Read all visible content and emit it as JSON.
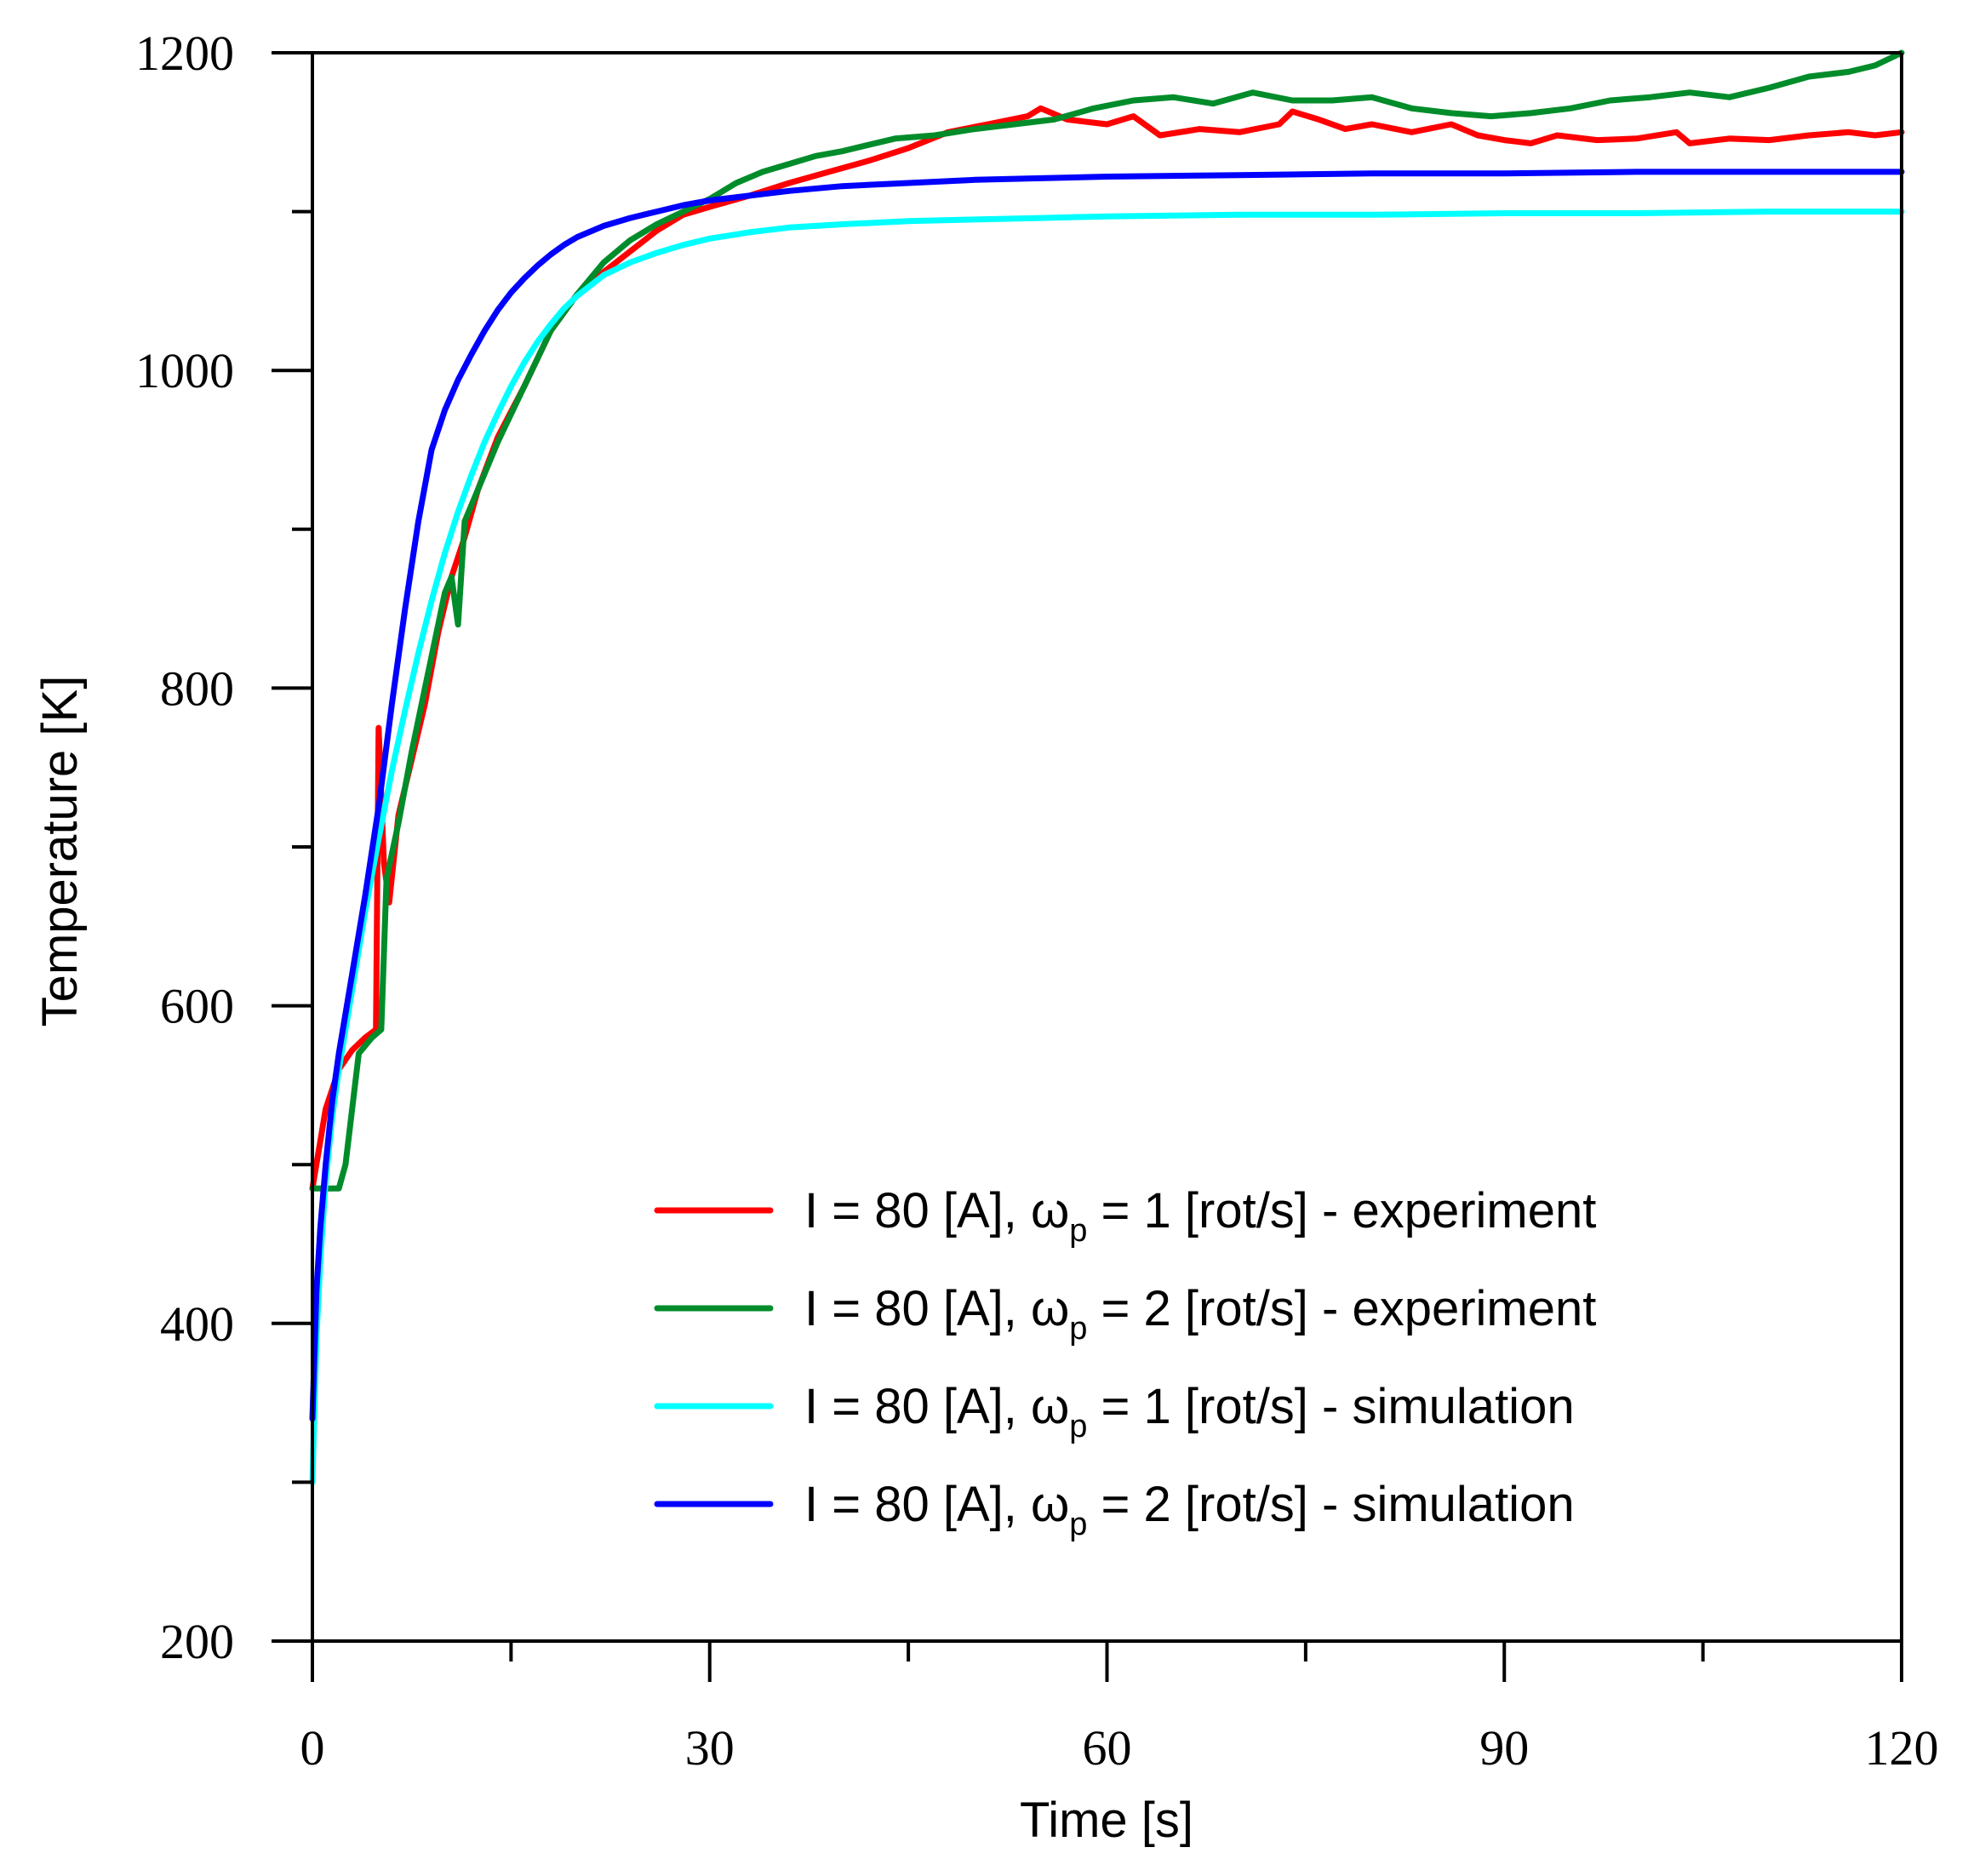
{
  "chart_data": {
    "type": "line",
    "title": "",
    "xlabel": "Time [s]",
    "ylabel": "Temperature [K]",
    "xlim": [
      0,
      120
    ],
    "ylim": [
      200,
      1200
    ],
    "x_ticks": [
      0,
      30,
      60,
      90,
      120
    ],
    "x_minor_ticks": [
      15,
      45,
      75,
      105
    ],
    "y_ticks": [
      200,
      400,
      600,
      800,
      1000,
      1200
    ],
    "y_minor_ticks": [
      300,
      500,
      700,
      900,
      1100
    ],
    "grid": false,
    "legend_position": "lower-right",
    "series": [
      {
        "name": "I = 80 [A], ωp = 1 [rot/s] - experiment",
        "label": {
          "pre": "I = 80 [A], ω",
          "sub": "p",
          "post": " = 1 [rot/s] - experiment"
        },
        "color": "#ff0000",
        "x": [
          0,
          1,
          2,
          3,
          4,
          4.8,
          5,
          5.4,
          5.8,
          6.5,
          7.5,
          8.5,
          9.5,
          10.5,
          11.5,
          12.5,
          14,
          16,
          18,
          20,
          22,
          24,
          26,
          28,
          30,
          33,
          36,
          39,
          42,
          45,
          48,
          51,
          54,
          55,
          57,
          60,
          62,
          64,
          67,
          70,
          73,
          74,
          76,
          78,
          80,
          83,
          86,
          88,
          90,
          92,
          94,
          97,
          100,
          103,
          104,
          107,
          110,
          113,
          116,
          118,
          120
        ],
        "y": [
          485,
          535,
          560,
          572,
          580,
          585,
          775,
          690,
          665,
          720,
          755,
          790,
          835,
          870,
          895,
          925,
          958,
          990,
          1025,
          1048,
          1062,
          1075,
          1088,
          1098,
          1103,
          1110,
          1118,
          1125,
          1132,
          1140,
          1150,
          1155,
          1160,
          1165,
          1158,
          1155,
          1160,
          1148,
          1152,
          1150,
          1155,
          1163,
          1158,
          1152,
          1155,
          1150,
          1155,
          1148,
          1145,
          1143,
          1148,
          1145,
          1146,
          1150,
          1143,
          1146,
          1145,
          1148,
          1150,
          1148,
          1150
        ]
      },
      {
        "name": "I = 80 [A], ωp = 2 [rot/s] - experiment",
        "label": {
          "pre": "I = 80 [A], ω",
          "sub": "p",
          "post": " = 2 [rot/s] - experiment"
        },
        "color": "#008c2a",
        "x": [
          0,
          1,
          2,
          2.5,
          3.5,
          4.5,
          5.2,
          5.6,
          6.5,
          7.5,
          8.5,
          9.5,
          10,
          10.5,
          11,
          11.5,
          12.5,
          14,
          16,
          18,
          20,
          22,
          24,
          26,
          28,
          30,
          32,
          34,
          36,
          38,
          40,
          42,
          44,
          47,
          50,
          53,
          56,
          59,
          62,
          65,
          68,
          71,
          74,
          77,
          80,
          83,
          86,
          89,
          92,
          95,
          98,
          101,
          104,
          107,
          110,
          113,
          116,
          118,
          120
        ],
        "y": [
          485,
          485,
          485,
          500,
          570,
          580,
          585,
          680,
          715,
          760,
          800,
          840,
          860,
          870,
          840,
          905,
          925,
          955,
          990,
          1025,
          1048,
          1068,
          1082,
          1092,
          1100,
          1108,
          1118,
          1125,
          1130,
          1135,
          1138,
          1142,
          1146,
          1148,
          1152,
          1155,
          1158,
          1165,
          1170,
          1172,
          1168,
          1175,
          1170,
          1170,
          1172,
          1165,
          1162,
          1160,
          1162,
          1165,
          1170,
          1172,
          1175,
          1172,
          1178,
          1185,
          1188,
          1192,
          1200
        ]
      },
      {
        "name": "I = 80 [A], ωp = 1 [rot/s] - simulation",
        "label": {
          "pre": "I = 80 [A], ω",
          "sub": "p",
          "post": " = 1 [rot/s] - simulation"
        },
        "color": "#00ffff",
        "x": [
          0,
          0.3,
          0.6,
          1,
          1.5,
          2,
          3,
          4,
          5,
          6,
          7,
          8,
          9,
          10,
          11,
          12,
          13,
          14,
          15,
          16,
          17,
          18,
          19,
          20,
          22,
          24,
          26,
          28,
          30,
          33,
          36,
          40,
          45,
          50,
          55,
          60,
          70,
          80,
          90,
          100,
          110,
          120
        ],
        "y": [
          300,
          390,
          440,
          490,
          530,
          560,
          610,
          660,
          705,
          748,
          786,
          822,
          855,
          885,
          911,
          934,
          955,
          973,
          990,
          1005,
          1018,
          1029,
          1039,
          1047,
          1060,
          1068,
          1074,
          1079,
          1083,
          1087,
          1090,
          1092,
          1094,
          1095,
          1096,
          1097,
          1098,
          1098,
          1099,
          1099,
          1100,
          1100
        ]
      },
      {
        "name": "I = 80 [A], ωp = 2 [rot/s] - simulation",
        "label": {
          "pre": "I = 80 [A], ω",
          "sub": "p",
          "post": " = 2 [rot/s] - simulation"
        },
        "color": "#0000ff",
        "x": [
          0,
          0.3,
          0.6,
          1,
          1.5,
          2,
          3,
          4,
          5,
          6,
          7,
          8,
          9,
          10,
          11,
          12,
          13,
          14,
          15,
          16,
          17,
          18,
          19,
          20,
          22,
          24,
          26,
          28,
          30,
          33,
          36,
          40,
          45,
          50,
          55,
          60,
          70,
          80,
          90,
          100,
          110,
          120
        ],
        "y": [
          340,
          420,
          460,
          500,
          540,
          570,
          620,
          670,
          725,
          790,
          850,
          905,
          950,
          975,
          994,
          1010,
          1025,
          1038,
          1049,
          1058,
          1066,
          1073,
          1079,
          1084,
          1091,
          1096,
          1100,
          1104,
          1107,
          1110,
          1113,
          1116,
          1118,
          1120,
          1121,
          1122,
          1123,
          1124,
          1124,
          1125,
          1125,
          1125
        ]
      }
    ]
  }
}
